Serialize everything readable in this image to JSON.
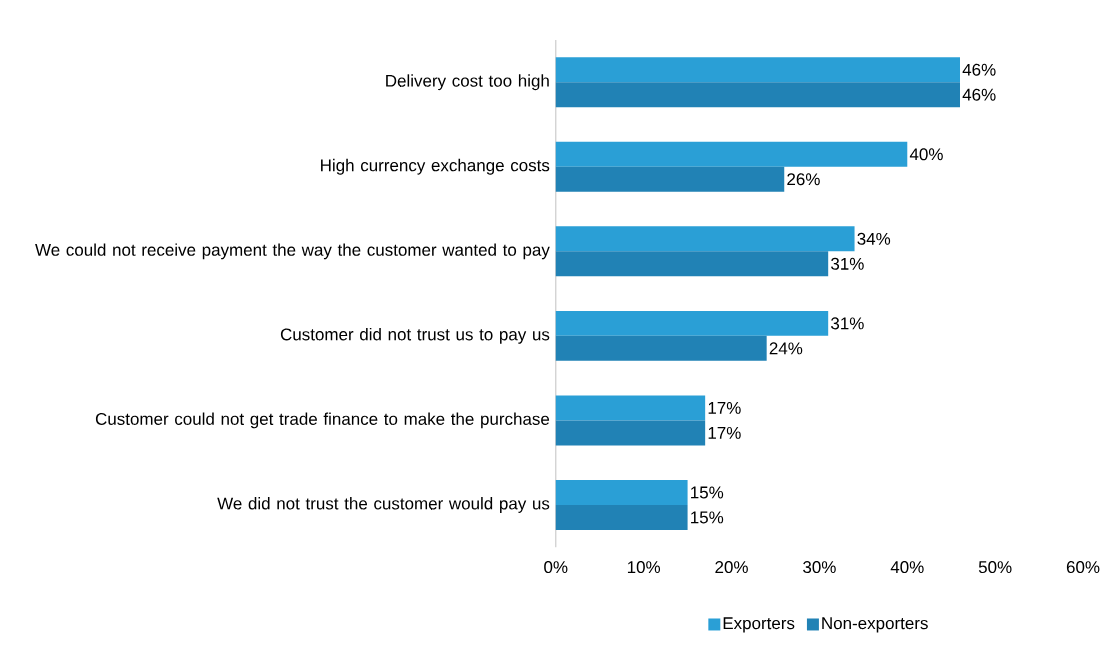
{
  "chart_data": {
    "type": "bar",
    "orientation": "horizontal",
    "categories": [
      "Delivery cost too high",
      "High currency exchange costs",
      "We could not receive payment the way the customer wanted to pay",
      "Customer did not trust us to pay us",
      "Customer could not get trade finance to make the purchase",
      "We did not trust the customer would pay us"
    ],
    "series": [
      {
        "name": "Exporters",
        "color": "#2a9fd6",
        "values": [
          46,
          40,
          34,
          31,
          17,
          15
        ],
        "value_labels": [
          "46%",
          "40%",
          "34%",
          "31%",
          "17%",
          "15%"
        ]
      },
      {
        "name": "Non-exporters",
        "color": "#2182b5",
        "values": [
          46,
          26,
          31,
          24,
          17,
          15
        ],
        "value_labels": [
          "46%",
          "26%",
          "31%",
          "24%",
          "17%",
          "15%"
        ]
      }
    ],
    "xlim": [
      0,
      60
    ],
    "xticks": [
      {
        "value": 0,
        "label": "0%"
      },
      {
        "value": 10,
        "label": "10%"
      },
      {
        "value": 20,
        "label": "20%"
      },
      {
        "value": 30,
        "label": "30%"
      },
      {
        "value": 40,
        "label": "40%"
      },
      {
        "value": 50,
        "label": "50%"
      },
      {
        "value": 60,
        "label": "60%"
      }
    ],
    "legend": "bottom"
  }
}
